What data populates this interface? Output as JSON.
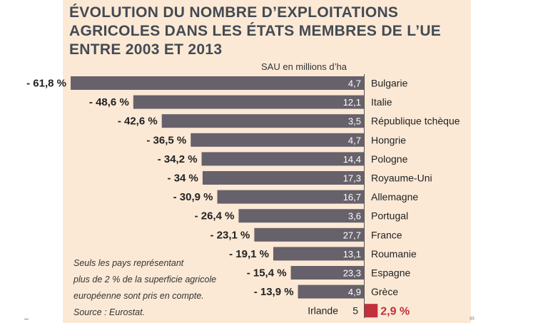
{
  "title_lines": [
    "ÉVOLUTION DU NOMBRE D’EXPLOITATIONS",
    "AGRICOLES DANS LES ÉTATS MEMBRES DE L’UE",
    "ENTRE 2003 ET 2013"
  ],
  "unit_label": "SAU en millions d’ha",
  "note_lines": [
    "Seuls les pays représentant",
    "plus de 2 % de la superficie agricole",
    "européenne sont pris en compte.",
    "Source : Eurostat."
  ],
  "chart_data": {
    "type": "bar",
    "orientation": "horizontal",
    "title": "ÉVOLUTION DU NOMBRE D’EXPLOITATIONS AGRICOLES DANS LES ÉTATS MEMBRES DE L’UE ENTRE 2003 ET 2013",
    "categories": [
      "Bulgarie",
      "Italie",
      "République tchèque",
      "Hongrie",
      "Pologne",
      "Royaume-Uni",
      "Allemagne",
      "Portugal",
      "France",
      "Roumanie",
      "Espagne",
      "Grèce",
      "Irlande"
    ],
    "values": [
      -61.8,
      -48.6,
      -42.6,
      -36.5,
      -34.2,
      -34,
      -30.9,
      -26.4,
      -23.1,
      -19.1,
      -15.4,
      -13.9,
      2.9
    ],
    "value_labels": [
      "- 61,8 %",
      "- 48,6 %",
      "- 42,6 %",
      "- 36,5 %",
      "- 34,2 %",
      "- 34 %",
      "- 30,9 %",
      "- 26,4 %",
      "- 23,1 %",
      "- 19,1 %",
      "- 15,4 %",
      "- 13,9 %",
      "2,9 %"
    ],
    "sau_values": [
      4.7,
      12.1,
      3.5,
      4.7,
      14.4,
      17.3,
      16.7,
      3.6,
      27.7,
      13.1,
      23.3,
      4.9,
      5
    ],
    "sau_labels": [
      "4,7",
      "12,1",
      "3,5",
      "4,7",
      "14,4",
      "17,3",
      "16,7",
      "3,6",
      "27,7",
      "13,1",
      "23,3",
      "4,9",
      "5"
    ],
    "sau_unit": "SAU en millions d’ha",
    "colors": {
      "decrease": "#66616a",
      "increase": "#c1303b",
      "background": "#fbe9d6"
    },
    "legend": "none",
    "grid": false
  },
  "marks": {
    "corner": "IR"
  }
}
